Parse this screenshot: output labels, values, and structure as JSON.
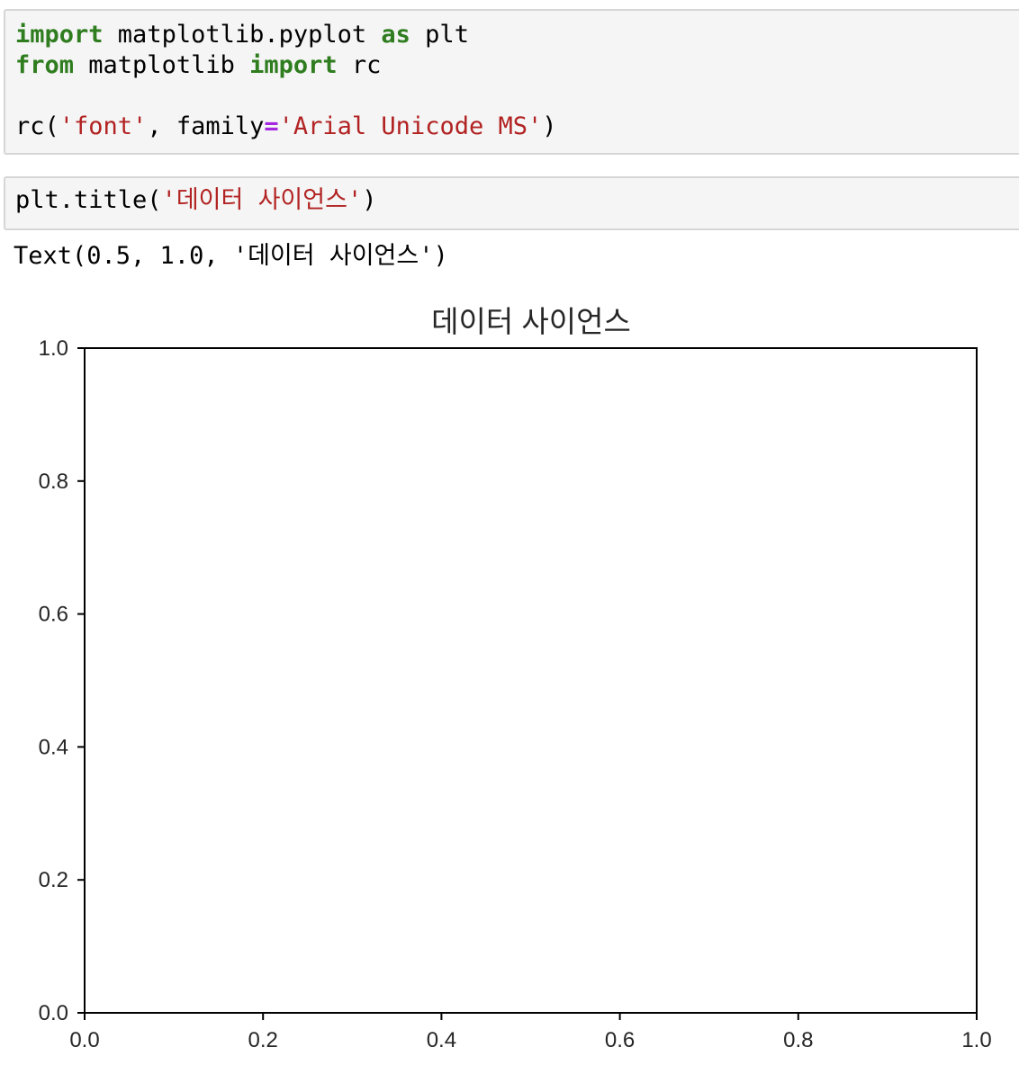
{
  "cells": [
    {
      "lines": [
        [
          {
            "t": "import",
            "c": "kw"
          },
          {
            "t": " matplotlib.pyplot "
          },
          {
            "t": "as",
            "c": "kw"
          },
          {
            "t": " plt"
          }
        ],
        [
          {
            "t": "from",
            "c": "kw"
          },
          {
            "t": " matplotlib "
          },
          {
            "t": "import",
            "c": "kw"
          },
          {
            "t": " rc"
          }
        ],
        [],
        [
          {
            "t": "rc("
          },
          {
            "t": "'font'",
            "c": "str"
          },
          {
            "t": ", family"
          },
          {
            "t": "=",
            "c": "op"
          },
          {
            "t": "'Arial Unicode MS'",
            "c": "str"
          },
          {
            "t": ")"
          }
        ]
      ]
    },
    {
      "lines": [
        [
          {
            "t": "plt.title("
          },
          {
            "t": "'데이터 사이언스'",
            "c": "str"
          },
          {
            "t": ")"
          }
        ]
      ]
    }
  ],
  "output_text": "Text(0.5, 1.0, '데이터 사이언스')",
  "chart_data": {
    "type": "line",
    "title": "데이터 사이언스",
    "xlabel": "",
    "ylabel": "",
    "xlim": [
      0.0,
      1.0
    ],
    "ylim": [
      0.0,
      1.0
    ],
    "xticks": [
      "0.0",
      "0.2",
      "0.4",
      "0.6",
      "0.8",
      "1.0"
    ],
    "yticks": [
      "0.0",
      "0.2",
      "0.4",
      "0.6",
      "0.8",
      "1.0"
    ],
    "series": [],
    "grid": false
  }
}
